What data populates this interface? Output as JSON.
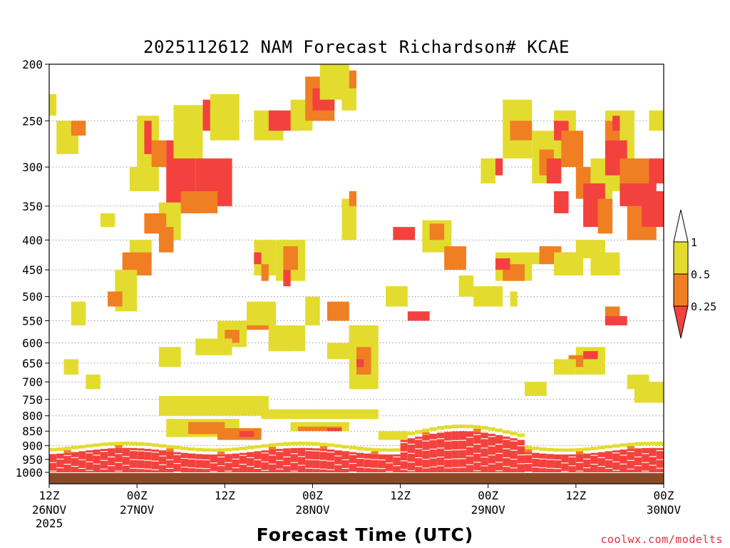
{
  "chart_data": {
    "type": "heatmap",
    "title": "2025112612 NAM Forecast Richardson# KCAE",
    "xlabel": "Forecast Time (UTC)",
    "ylabel": "",
    "credit": "coolwx.com/modelts",
    "x_ticks": [
      {
        "hour": 0,
        "label": "12Z",
        "day": "26NOV",
        "year": "2025"
      },
      {
        "hour": 12,
        "label": "00Z",
        "day": "27NOV"
      },
      {
        "hour": 24,
        "label": "12Z"
      },
      {
        "hour": 36,
        "label": "00Z",
        "day": "28NOV"
      },
      {
        "hour": 48,
        "label": "12Z"
      },
      {
        "hour": 60,
        "label": "00Z",
        "day": "29NOV"
      },
      {
        "hour": 72,
        "label": "12Z"
      },
      {
        "hour": 84,
        "label": "00Z",
        "day": "30NOV"
      }
    ],
    "xlim": [
      0,
      84
    ],
    "y_ticks": [
      200,
      250,
      300,
      350,
      400,
      450,
      500,
      550,
      600,
      650,
      700,
      750,
      800,
      850,
      900,
      950,
      1000
    ],
    "ylim": [
      200,
      1000
    ],
    "y_scale": "log-pressure",
    "colorbar": {
      "levels": [
        "1",
        "0.5",
        "0.25"
      ],
      "bins": [
        {
          "range": "> 1",
          "color": "#ffffff"
        },
        {
          "range": "0.5 - 1",
          "color": "#e3dc2e"
        },
        {
          "range": "0.25 - 0.5",
          "color": "#ef7f22"
        },
        {
          "range": "< 0.25",
          "color": "#f3423d"
        }
      ]
    },
    "colors": {
      "yellow": "#e3dc2e",
      "orange": "#ef7f22",
      "red": "#f3423d",
      "ground": "#8b4a26"
    },
    "regions": [
      {
        "t": [
          1,
          4
        ],
        "p": [
          250,
          285
        ],
        "cls": "y"
      },
      {
        "t": [
          3,
          5
        ],
        "p": [
          250,
          265
        ],
        "cls": "o"
      },
      {
        "t": [
          0,
          1
        ],
        "p": [
          225,
          245
        ],
        "cls": "y"
      },
      {
        "t": [
          7,
          9
        ],
        "p": [
          360,
          380
        ],
        "cls": "y"
      },
      {
        "t": [
          12,
          15
        ],
        "p": [
          245,
          300
        ],
        "cls": "y"
      },
      {
        "t": [
          13,
          14
        ],
        "p": [
          250,
          285
        ],
        "cls": "r"
      },
      {
        "t": [
          14,
          16
        ],
        "p": [
          270,
          300
        ],
        "cls": "o"
      },
      {
        "t": [
          16,
          20
        ],
        "p": [
          270,
          360
        ],
        "cls": "r"
      },
      {
        "t": [
          17,
          21
        ],
        "p": [
          235,
          290
        ],
        "cls": "y"
      },
      {
        "t": [
          20,
          25
        ],
        "p": [
          290,
          350
        ],
        "cls": "r"
      },
      {
        "t": [
          18,
          23
        ],
        "p": [
          330,
          360
        ],
        "cls": "o"
      },
      {
        "t": [
          21,
          24
        ],
        "p": [
          230,
          260
        ],
        "cls": "r"
      },
      {
        "t": [
          22,
          26
        ],
        "p": [
          225,
          270
        ],
        "cls": "y"
      },
      {
        "t": [
          11,
          15
        ],
        "p": [
          300,
          330
        ],
        "cls": "y"
      },
      {
        "t": [
          15,
          18
        ],
        "p": [
          345,
          400
        ],
        "cls": "y"
      },
      {
        "t": [
          13,
          16
        ],
        "p": [
          360,
          390
        ],
        "cls": "o"
      },
      {
        "t": [
          15,
          17
        ],
        "p": [
          380,
          420
        ],
        "cls": "o"
      },
      {
        "t": [
          11,
          14
        ],
        "p": [
          400,
          440
        ],
        "cls": "y"
      },
      {
        "t": [
          10,
          14
        ],
        "p": [
          420,
          460
        ],
        "cls": "o"
      },
      {
        "t": [
          9,
          12
        ],
        "p": [
          450,
          530
        ],
        "cls": "y"
      },
      {
        "t": [
          8,
          10
        ],
        "p": [
          490,
          520
        ],
        "cls": "o"
      },
      {
        "t": [
          3,
          5
        ],
        "p": [
          510,
          560
        ],
        "cls": "y"
      },
      {
        "t": [
          2,
          4
        ],
        "p": [
          640,
          680
        ],
        "cls": "y"
      },
      {
        "t": [
          5,
          7
        ],
        "p": [
          680,
          720
        ],
        "cls": "y"
      },
      {
        "t": [
          28,
          32
        ],
        "p": [
          240,
          270
        ],
        "cls": "y"
      },
      {
        "t": [
          30,
          34
        ],
        "p": [
          240,
          260
        ],
        "cls": "r"
      },
      {
        "t": [
          33,
          36
        ],
        "p": [
          230,
          260
        ],
        "cls": "y"
      },
      {
        "t": [
          35,
          39
        ],
        "p": [
          210,
          250
        ],
        "cls": "o"
      },
      {
        "t": [
          36,
          39
        ],
        "p": [
          220,
          240
        ],
        "cls": "r"
      },
      {
        "t": [
          37,
          41
        ],
        "p": [
          200,
          230
        ],
        "cls": "y"
      },
      {
        "t": [
          40,
          42
        ],
        "p": [
          215,
          240
        ],
        "cls": "y"
      },
      {
        "t": [
          41,
          42
        ],
        "p": [
          205,
          220
        ],
        "cls": "o"
      },
      {
        "t": [
          40,
          42
        ],
        "p": [
          340,
          400
        ],
        "cls": "y"
      },
      {
        "t": [
          41,
          42
        ],
        "p": [
          330,
          350
        ],
        "cls": "o"
      },
      {
        "t": [
          28,
          31
        ],
        "p": [
          400,
          460
        ],
        "cls": "y"
      },
      {
        "t": [
          31,
          35
        ],
        "p": [
          400,
          470
        ],
        "cls": "y"
      },
      {
        "t": [
          32,
          34
        ],
        "p": [
          410,
          450
        ],
        "cls": "o"
      },
      {
        "t": [
          28,
          29
        ],
        "p": [
          420,
          440
        ],
        "cls": "r"
      },
      {
        "t": [
          29,
          30
        ],
        "p": [
          440,
          470
        ],
        "cls": "o"
      },
      {
        "t": [
          32,
          33
        ],
        "p": [
          450,
          480
        ],
        "cls": "r"
      },
      {
        "t": [
          27,
          30
        ],
        "p": [
          540,
          570
        ],
        "cls": "o"
      },
      {
        "t": [
          27,
          31
        ],
        "p": [
          510,
          560
        ],
        "cls": "y"
      },
      {
        "t": [
          30,
          33
        ],
        "p": [
          580,
          620
        ],
        "cls": "r"
      },
      {
        "t": [
          30,
          35
        ],
        "p": [
          560,
          620
        ],
        "cls": "y"
      },
      {
        "t": [
          23,
          27
        ],
        "p": [
          550,
          610
        ],
        "cls": "y"
      },
      {
        "t": [
          24,
          26
        ],
        "p": [
          570,
          600
        ],
        "cls": "o"
      },
      {
        "t": [
          35,
          37
        ],
        "p": [
          500,
          560
        ],
        "cls": "y"
      },
      {
        "t": [
          38,
          41
        ],
        "p": [
          510,
          550
        ],
        "cls": "o"
      },
      {
        "t": [
          41,
          43
        ],
        "p": [
          560,
          620
        ],
        "cls": "o"
      },
      {
        "t": [
          41,
          45
        ],
        "p": [
          560,
          720
        ],
        "cls": "y"
      },
      {
        "t": [
          42,
          44
        ],
        "p": [
          610,
          680
        ],
        "cls": "o"
      },
      {
        "t": [
          42,
          43
        ],
        "p": [
          640,
          660
        ],
        "cls": "r"
      },
      {
        "t": [
          38,
          41
        ],
        "p": [
          600,
          640
        ],
        "cls": "y"
      },
      {
        "t": [
          15,
          18
        ],
        "p": [
          610,
          660
        ],
        "cls": "y"
      },
      {
        "t": [
          20,
          25
        ],
        "p": [
          590,
          630
        ],
        "cls": "y"
      },
      {
        "t": [
          15,
          30
        ],
        "p": [
          740,
          800
        ],
        "cls": "y"
      },
      {
        "t": [
          16,
          26
        ],
        "p": [
          810,
          870
        ],
        "cls": "y"
      },
      {
        "t": [
          19,
          24
        ],
        "p": [
          820,
          860
        ],
        "cls": "o"
      },
      {
        "t": [
          23,
          29
        ],
        "p": [
          840,
          880
        ],
        "cls": "o"
      },
      {
        "t": [
          26,
          28
        ],
        "p": [
          850,
          870
        ],
        "cls": "r"
      },
      {
        "t": [
          29,
          45
        ],
        "p": [
          780,
          810
        ],
        "cls": "y"
      },
      {
        "t": [
          33,
          41
        ],
        "p": [
          820,
          850
        ],
        "cls": "y"
      },
      {
        "t": [
          34,
          40
        ],
        "p": [
          835,
          850
        ],
        "cls": "o"
      },
      {
        "t": [
          38,
          40
        ],
        "p": [
          840,
          850
        ],
        "cls": "r"
      },
      {
        "t": [
          45,
          49
        ],
        "p": [
          850,
          880
        ],
        "cls": "y"
      },
      {
        "t": [
          47,
          50
        ],
        "p": [
          380,
          400
        ],
        "cls": "r"
      },
      {
        "t": [
          51,
          55
        ],
        "p": [
          370,
          420
        ],
        "cls": "y"
      },
      {
        "t": [
          52,
          54
        ],
        "p": [
          375,
          400
        ],
        "cls": "o"
      },
      {
        "t": [
          54,
          57
        ],
        "p": [
          410,
          450
        ],
        "cls": "o"
      },
      {
        "t": [
          49,
          52
        ],
        "p": [
          530,
          550
        ],
        "cls": "r"
      },
      {
        "t": [
          46,
          49
        ],
        "p": [
          480,
          520
        ],
        "cls": "y"
      },
      {
        "t": [
          56,
          58
        ],
        "p": [
          460,
          500
        ],
        "cls": "y"
      },
      {
        "t": [
          58,
          62
        ],
        "p": [
          480,
          520
        ],
        "cls": "y"
      },
      {
        "t": [
          61,
          66
        ],
        "p": [
          420,
          470
        ],
        "cls": "y"
      },
      {
        "t": [
          62,
          65
        ],
        "p": [
          440,
          470
        ],
        "cls": "o"
      },
      {
        "t": [
          61,
          63
        ],
        "p": [
          430,
          450
        ],
        "cls": "r"
      },
      {
        "t": [
          65,
          68
        ],
        "p": [
          420,
          440
        ],
        "cls": "y"
      },
      {
        "t": [
          67,
          70
        ],
        "p": [
          410,
          440
        ],
        "cls": "o"
      },
      {
        "t": [
          70,
          72
        ],
        "p": [
          420,
          440
        ],
        "cls": "r"
      },
      {
        "t": [
          69,
          73
        ],
        "p": [
          420,
          460
        ],
        "cls": "y"
      },
      {
        "t": [
          72,
          76
        ],
        "p": [
          400,
          430
        ],
        "cls": "y"
      },
      {
        "t": [
          63,
          64
        ],
        "p": [
          490,
          520
        ],
        "cls": "y"
      },
      {
        "t": [
          60,
          62
        ],
        "p": [
          290,
          310
        ],
        "cls": "r"
      },
      {
        "t": [
          59,
          61
        ],
        "p": [
          290,
          320
        ],
        "cls": "y"
      },
      {
        "t": [
          62,
          66
        ],
        "p": [
          230,
          290
        ],
        "cls": "y"
      },
      {
        "t": [
          63,
          66
        ],
        "p": [
          250,
          270
        ],
        "cls": "o"
      },
      {
        "t": [
          66,
          69
        ],
        "p": [
          260,
          320
        ],
        "cls": "y"
      },
      {
        "t": [
          67,
          69
        ],
        "p": [
          280,
          310
        ],
        "cls": "o"
      },
      {
        "t": [
          68,
          70
        ],
        "p": [
          290,
          320
        ],
        "cls": "r"
      },
      {
        "t": [
          69,
          72
        ],
        "p": [
          240,
          290
        ],
        "cls": "y"
      },
      {
        "t": [
          69,
          71
        ],
        "p": [
          250,
          270
        ],
        "cls": "r"
      },
      {
        "t": [
          70,
          73
        ],
        "p": [
          260,
          300
        ],
        "cls": "o"
      },
      {
        "t": [
          69,
          71
        ],
        "p": [
          330,
          360
        ],
        "cls": "r"
      },
      {
        "t": [
          72,
          75
        ],
        "p": [
          300,
          340
        ],
        "cls": "o"
      },
      {
        "t": [
          74,
          77
        ],
        "p": [
          290,
          340
        ],
        "cls": "y"
      },
      {
        "t": [
          73,
          76
        ],
        "p": [
          320,
          380
        ],
        "cls": "r"
      },
      {
        "t": [
          75,
          77
        ],
        "p": [
          340,
          390
        ],
        "cls": "o"
      },
      {
        "t": [
          76,
          80
        ],
        "p": [
          240,
          330
        ],
        "cls": "y"
      },
      {
        "t": [
          76,
          78
        ],
        "p": [
          250,
          270
        ],
        "cls": "o"
      },
      {
        "t": [
          77,
          78
        ],
        "p": [
          245,
          260
        ],
        "cls": "r"
      },
      {
        "t": [
          76,
          79
        ],
        "p": [
          270,
          310
        ],
        "cls": "r"
      },
      {
        "t": [
          78,
          83
        ],
        "p": [
          300,
          350
        ],
        "cls": "r"
      },
      {
        "t": [
          78,
          82
        ],
        "p": [
          290,
          320
        ],
        "cls": "o"
      },
      {
        "t": [
          79,
          83
        ],
        "p": [
          350,
          400
        ],
        "cls": "o"
      },
      {
        "t": [
          81,
          84
        ],
        "p": [
          330,
          380
        ],
        "cls": "r"
      },
      {
        "t": [
          82,
          84
        ],
        "p": [
          290,
          320
        ],
        "cls": "r"
      },
      {
        "t": [
          82,
          84
        ],
        "p": [
          240,
          260
        ],
        "cls": "y"
      },
      {
        "t": [
          74,
          78
        ],
        "p": [
          420,
          460
        ],
        "cls": "y"
      },
      {
        "t": [
          76,
          78
        ],
        "p": [
          520,
          560
        ],
        "cls": "o"
      },
      {
        "t": [
          76,
          79
        ],
        "p": [
          540,
          560
        ],
        "cls": "r"
      },
      {
        "t": [
          72,
          76
        ],
        "p": [
          610,
          680
        ],
        "cls": "y"
      },
      {
        "t": [
          73,
          75
        ],
        "p": [
          620,
          640
        ],
        "cls": "r"
      },
      {
        "t": [
          71,
          73
        ],
        "p": [
          630,
          660
        ],
        "cls": "o"
      },
      {
        "t": [
          69,
          72
        ],
        "p": [
          640,
          680
        ],
        "cls": "y"
      },
      {
        "t": [
          65,
          68
        ],
        "p": [
          700,
          740
        ],
        "cls": "y"
      },
      {
        "t": [
          79,
          82
        ],
        "p": [
          680,
          720
        ],
        "cls": "y"
      },
      {
        "t": [
          80,
          84
        ],
        "p": [
          700,
          760
        ],
        "cls": "y"
      }
    ],
    "blowups": [
      {
        "t": [
          0,
          84
        ],
        "p": [
          990,
          1030
        ],
        "band": true
      }
    ]
  }
}
